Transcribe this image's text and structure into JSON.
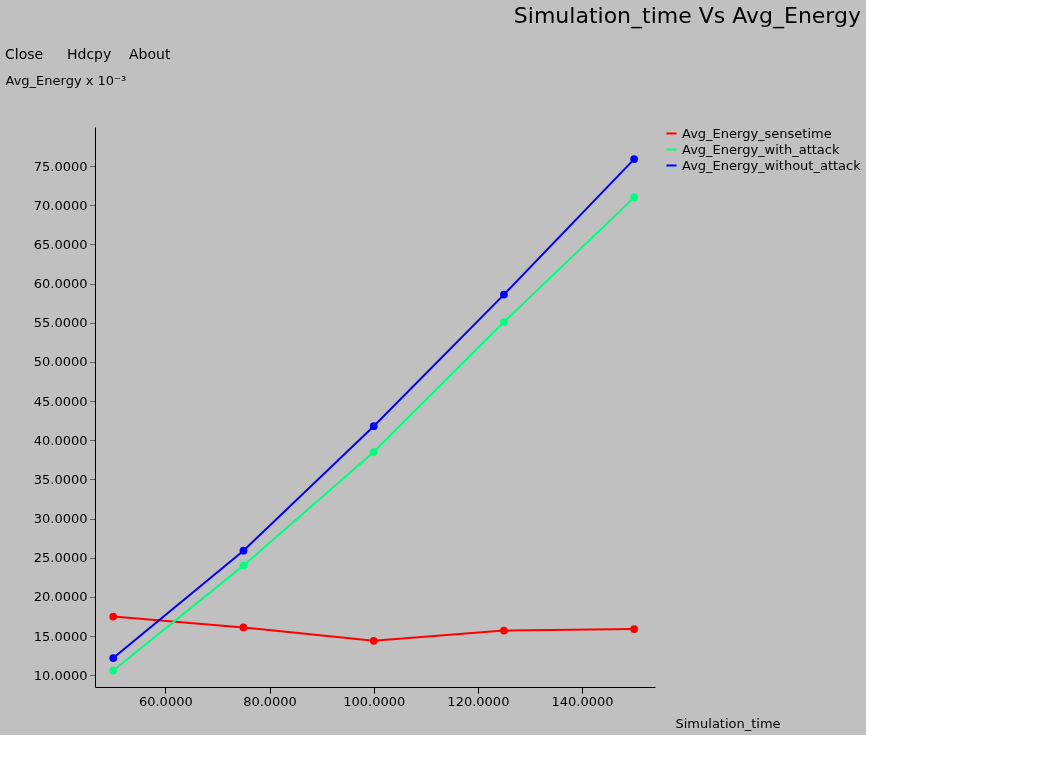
{
  "chart_data": {
    "type": "line",
    "title": "Simulation_time Vs Avg_Energy",
    "xlabel": "Simulation_time",
    "ylabel": "Avg_Energy x 10⁻³",
    "x": [
      50,
      75,
      100,
      125,
      150
    ],
    "series": [
      {
        "name": "Avg_Energy_sensetime",
        "color": "#ff0000",
        "values": [
          17.5,
          16.1,
          14.4,
          15.7,
          15.9
        ]
      },
      {
        "name": "Avg_Energy_with_attack",
        "color": "#00ff7f",
        "values": [
          10.6,
          24.0,
          38.5,
          55.1,
          71.0
        ]
      },
      {
        "name": "Avg_Energy_without_attack",
        "color": "#0000ff",
        "values": [
          12.2,
          25.9,
          41.8,
          58.6,
          75.9
        ]
      }
    ],
    "xlim": [
      46.5,
      154
    ],
    "ylim": [
      8.5,
      80
    ],
    "xticks": [
      {
        "value": 60,
        "label": "60.0000"
      },
      {
        "value": 80,
        "label": "80.0000"
      },
      {
        "value": 100,
        "label": "100.0000"
      },
      {
        "value": 120,
        "label": "120.0000"
      },
      {
        "value": 140,
        "label": "140.0000"
      }
    ],
    "yticks": [
      {
        "value": 10,
        "label": "10.0000"
      },
      {
        "value": 15,
        "label": "15.0000"
      },
      {
        "value": 20,
        "label": "20.0000"
      },
      {
        "value": 25,
        "label": "25.0000"
      },
      {
        "value": 30,
        "label": "30.0000"
      },
      {
        "value": 35,
        "label": "35.0000"
      },
      {
        "value": 40,
        "label": "40.0000"
      },
      {
        "value": 45,
        "label": "45.0000"
      },
      {
        "value": 50,
        "label": "50.0000"
      },
      {
        "value": 55,
        "label": "55.0000"
      },
      {
        "value": 60,
        "label": "60.0000"
      },
      {
        "value": 65,
        "label": "65.0000"
      },
      {
        "value": 70,
        "label": "70.0000"
      },
      {
        "value": 75,
        "label": "75.0000"
      }
    ],
    "annotations": [
      "Close",
      "Hdcpy",
      "About"
    ],
    "marker": "circle",
    "line_style": "solid",
    "grid": false,
    "legend": "top right"
  }
}
